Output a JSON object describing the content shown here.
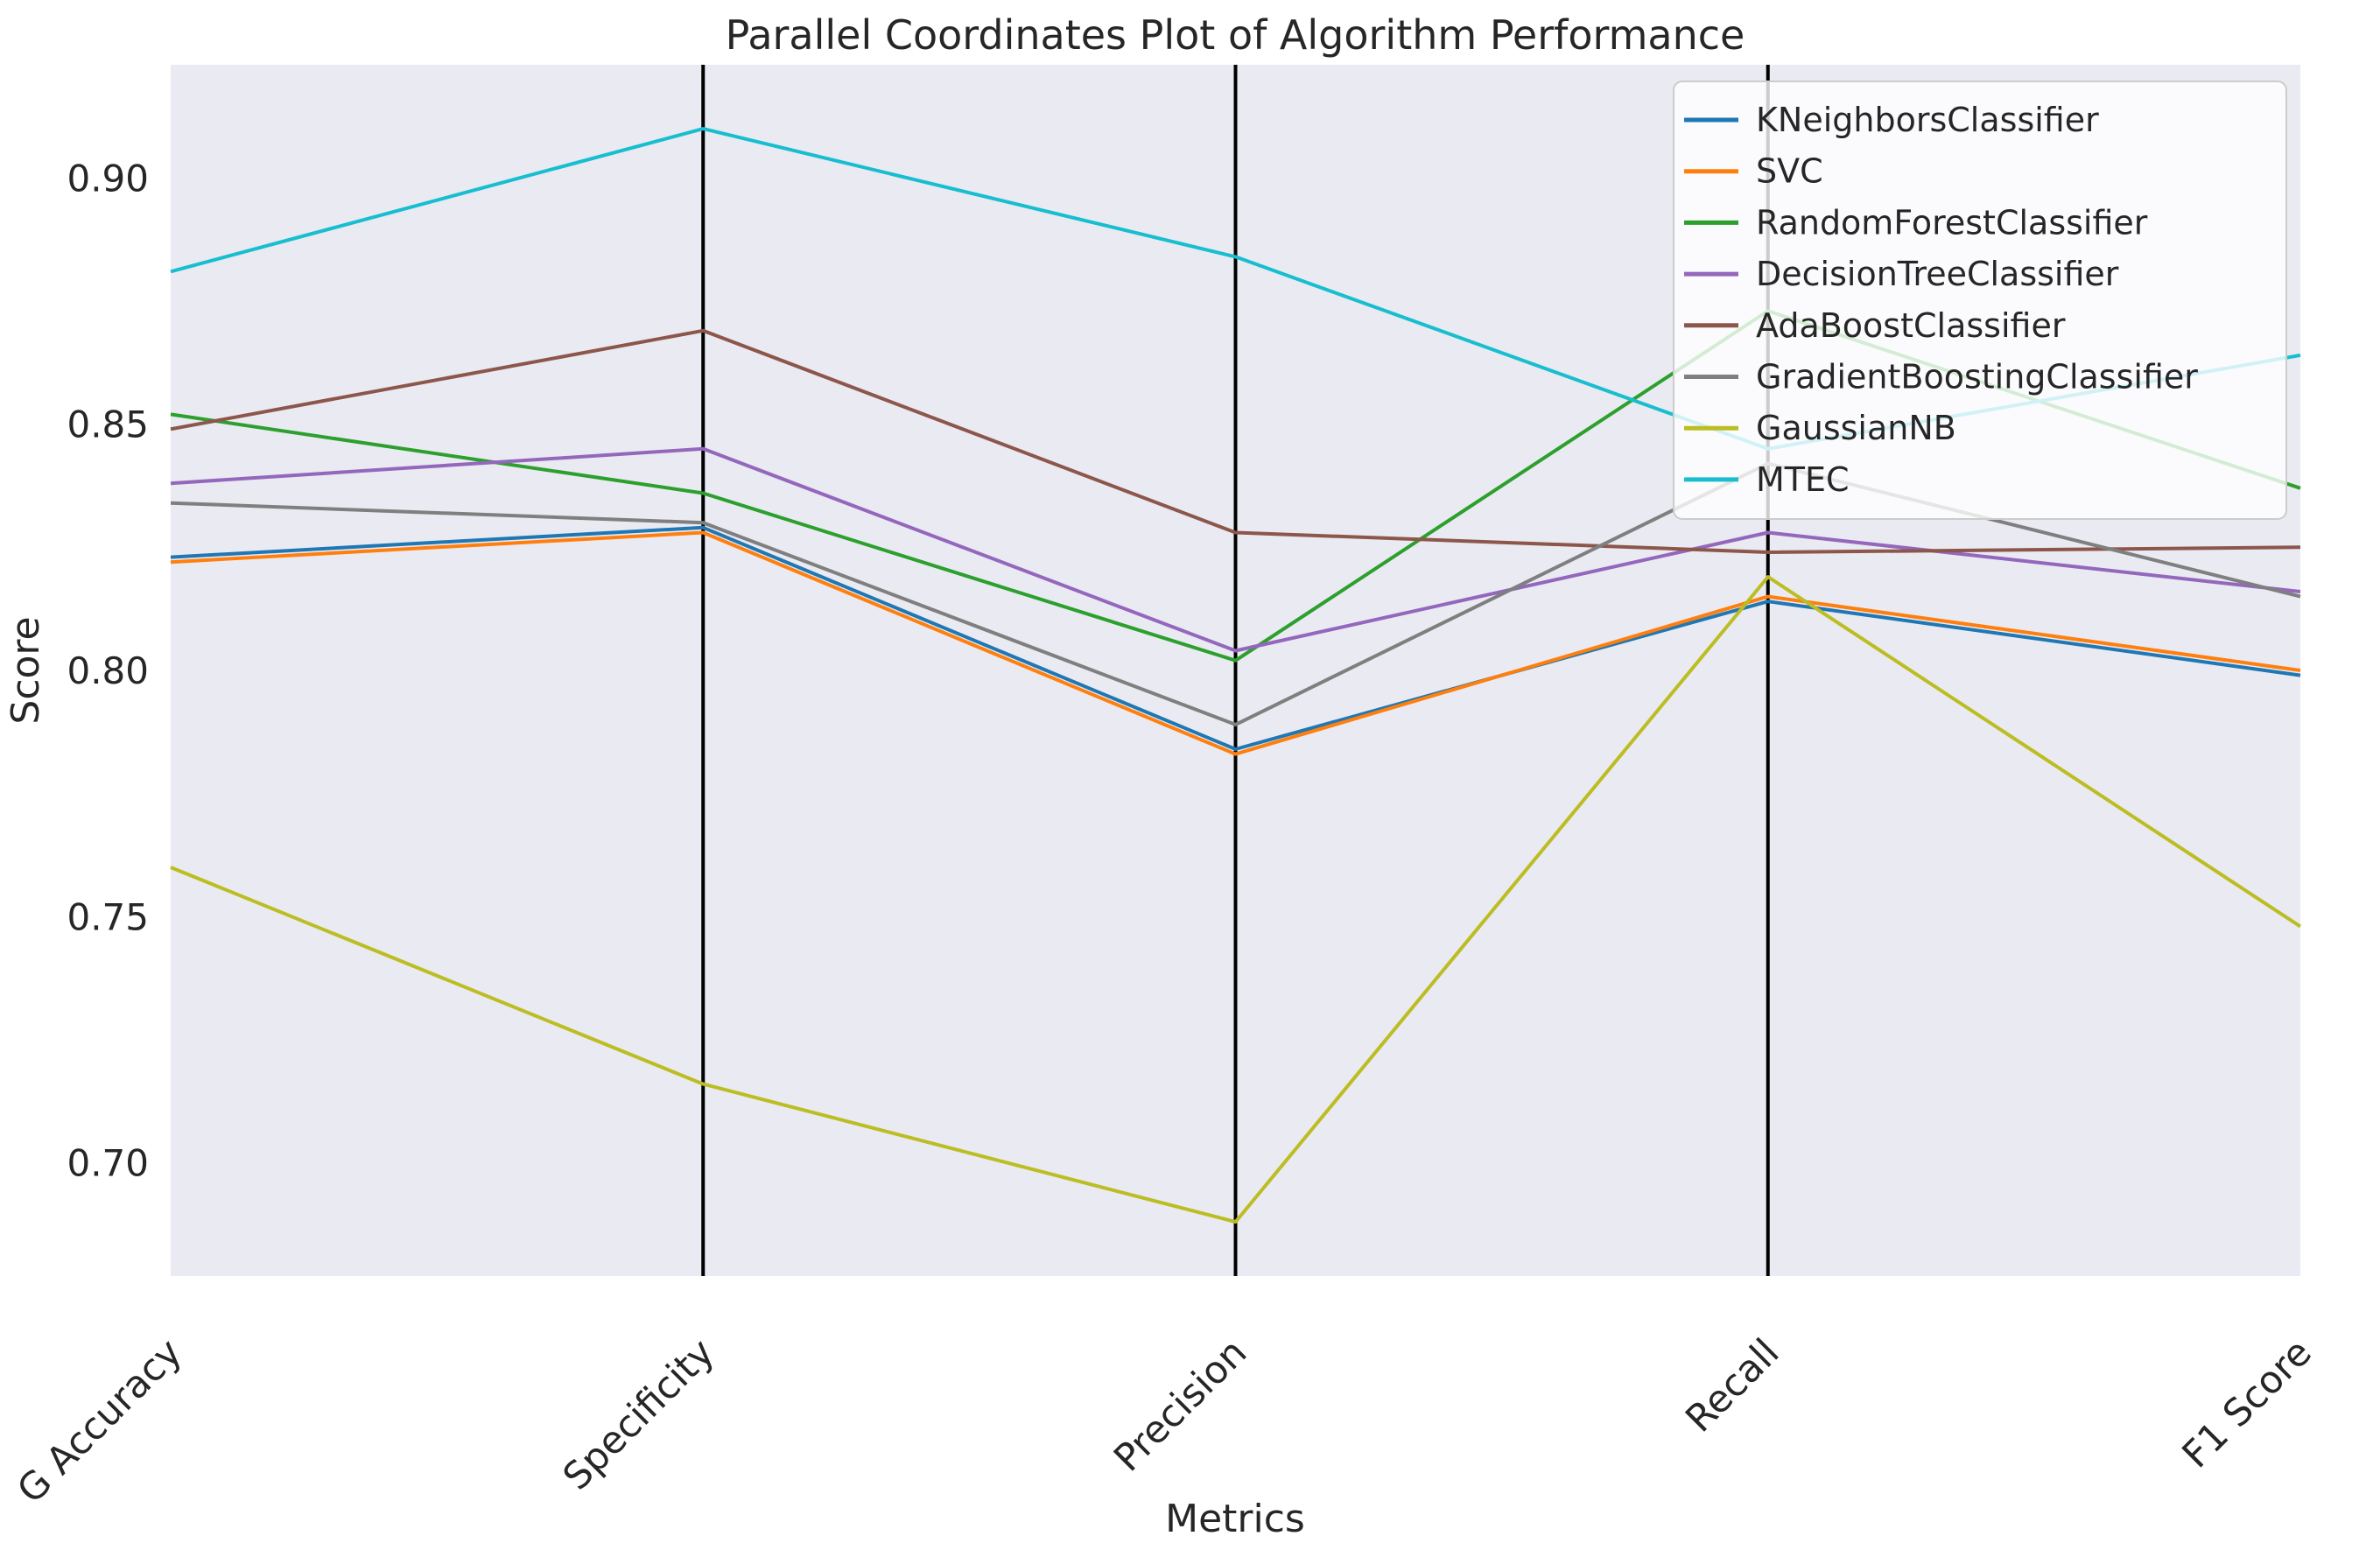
{
  "figure": {
    "background": "#ffffff",
    "plot_background": "#eaeaf2",
    "text_color": "#262626"
  },
  "chart_data": {
    "type": "line",
    "subtype": "parallel-coordinates",
    "title": "Parallel Coordinates Plot of Algorithm Performance",
    "xlabel": "Metrics",
    "ylabel": "Score",
    "categories": [
      "G Accuracy",
      "Specificity",
      "Precision",
      "Recall",
      "F1 Score"
    ],
    "yticks": [
      "0.70",
      "0.75",
      "0.80",
      "0.85",
      "0.90"
    ],
    "ylim": [
      0.677,
      0.923
    ],
    "grid": false,
    "axis_line_color": "#000000",
    "legend_position": "upper right",
    "series": [
      {
        "name": "KNeighborsClassifier",
        "color": "#1f77b4",
        "values": [
          0.823,
          0.829,
          0.784,
          0.814,
          0.799
        ]
      },
      {
        "name": "SVC",
        "color": "#ff7f0e",
        "values": [
          0.822,
          0.828,
          0.783,
          0.815,
          0.8
        ]
      },
      {
        "name": "RandomForestClassifier",
        "color": "#2ca02c",
        "values": [
          0.852,
          0.836,
          0.802,
          0.873,
          0.837
        ]
      },
      {
        "name": "DecisionTreeClassifier",
        "color": "#9467bd",
        "values": [
          0.838,
          0.845,
          0.804,
          0.828,
          0.816
        ]
      },
      {
        "name": "AdaBoostClassifier",
        "color": "#8c564b",
        "values": [
          0.849,
          0.869,
          0.828,
          0.824,
          0.825
        ]
      },
      {
        "name": "GradientBoostingClassifier",
        "color": "#7f7f7f",
        "values": [
          0.834,
          0.83,
          0.789,
          0.842,
          0.815
        ]
      },
      {
        "name": "GaussianNB",
        "color": "#bcbd22",
        "values": [
          0.76,
          0.716,
          0.688,
          0.819,
          0.748
        ]
      },
      {
        "name": "MTEC",
        "color": "#17becf",
        "values": [
          0.881,
          0.91,
          0.884,
          0.845,
          0.864
        ]
      }
    ]
  }
}
